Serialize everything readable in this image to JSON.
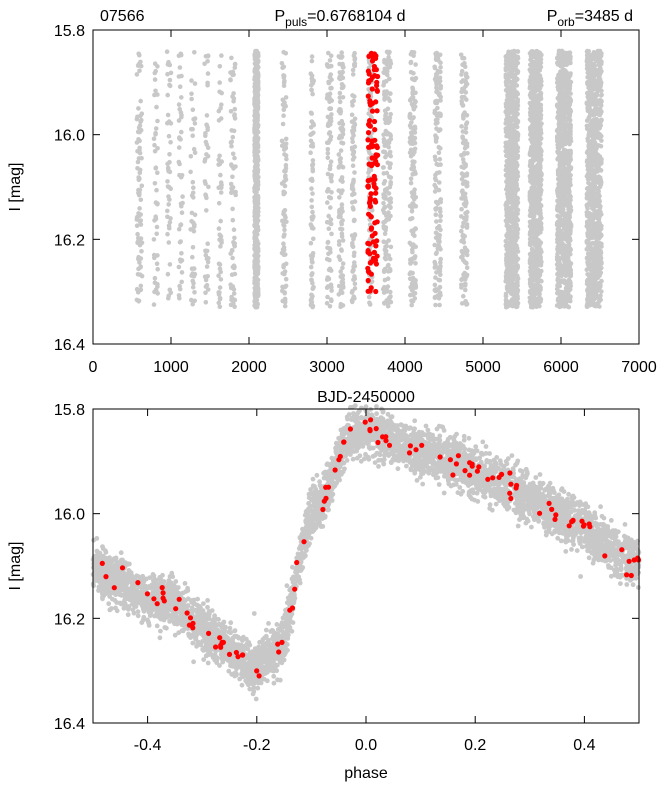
{
  "colors": {
    "background": "#ffffff",
    "all_data": "#c8c8c8",
    "highlight": "#ff0000",
    "frame": "#000000"
  },
  "header": {
    "star_id": "07566",
    "puls_prefix": "P",
    "puls_sub": "puls",
    "puls_value": "=0.6768104 d",
    "orb_prefix": "P",
    "orb_sub": "orb",
    "orb_value": "=3485 d"
  },
  "chart_data": [
    {
      "type": "scatter",
      "xlabel": "BJD-2450000",
      "ylabel": "I [mag]",
      "xlim": [
        0,
        7000
      ],
      "ylim": [
        16.4,
        15.8
      ],
      "y_inverted": true,
      "xticks": [
        "0",
        "1000",
        "2000",
        "3000",
        "4000",
        "5000",
        "6000",
        "7000"
      ],
      "yticks": [
        "15.8",
        "16.0",
        "16.2",
        "16.4"
      ],
      "xtick_values": [
        0,
        1000,
        2000,
        3000,
        4000,
        5000,
        6000,
        7000
      ],
      "ytick_values": [
        15.8,
        16.0,
        16.2,
        16.4
      ],
      "grid": false,
      "series": [
        {
          "color": "#c8c8c8",
          "mag_range": [
            15.84,
            16.33
          ],
          "observing_seasons": [
            [
              560,
              630,
              80
            ],
            [
              780,
              830,
              45
            ],
            [
              950,
              1000,
              45
            ],
            [
              1100,
              1150,
              45
            ],
            [
              1250,
              1310,
              45
            ],
            [
              1430,
              1480,
              45
            ],
            [
              1610,
              1650,
              45
            ],
            [
              1760,
              1830,
              70
            ],
            [
              2070,
              2120,
              600
            ],
            [
              2420,
              2480,
              90
            ],
            [
              2790,
              2830,
              80
            ],
            [
              3000,
              3060,
              100
            ],
            [
              3150,
              3210,
              110
            ],
            [
              3320,
              3360,
              90
            ],
            [
              3530,
              3580,
              120
            ],
            [
              3720,
              3820,
              180
            ],
            [
              4060,
              4140,
              150
            ],
            [
              4380,
              4460,
              150
            ],
            [
              4720,
              4800,
              150
            ],
            [
              5290,
              5450,
              900
            ],
            [
              5600,
              5750,
              900
            ],
            [
              5950,
              6130,
              900
            ],
            [
              6330,
              6520,
              900
            ]
          ]
        },
        {
          "color": "#ff0000",
          "mag_range": [
            15.84,
            16.3
          ],
          "observing_seasons": [
            [
              3520,
              3650,
              110
            ]
          ]
        }
      ]
    },
    {
      "type": "scatter",
      "xlabel": "phase",
      "ylabel": "I [mag]",
      "xlim": [
        -0.5,
        0.5
      ],
      "ylim": [
        16.4,
        15.8
      ],
      "y_inverted": true,
      "xticks": [
        "-0.4",
        "-0.2",
        "0.0",
        "0.2",
        "0.4"
      ],
      "yticks": [
        "15.8",
        "16.0",
        "16.2",
        "16.4"
      ],
      "xtick_values": [
        -0.4,
        -0.2,
        0.0,
        0.2,
        0.4
      ],
      "ytick_values": [
        15.8,
        16.0,
        16.2,
        16.4
      ],
      "grid": false,
      "light_curve": {
        "phase": [
          -0.5,
          -0.4,
          -0.35,
          -0.3,
          -0.25,
          -0.2,
          -0.15,
          -0.12,
          -0.1,
          -0.08,
          -0.06,
          -0.03,
          0.0,
          0.1,
          0.2,
          0.3,
          0.4,
          0.5
        ],
        "mag": [
          16.1,
          16.16,
          16.17,
          16.22,
          16.26,
          16.3,
          16.24,
          16.08,
          15.99,
          15.98,
          15.92,
          15.85,
          15.84,
          15.88,
          15.92,
          15.97,
          16.03,
          16.1
        ]
      },
      "series": [
        {
          "color": "#c8c8c8",
          "count": 5000,
          "scatter_mag": 0.022
        },
        {
          "color": "#ff0000",
          "count": 110,
          "scatter_mag": 0.012
        }
      ]
    }
  ]
}
